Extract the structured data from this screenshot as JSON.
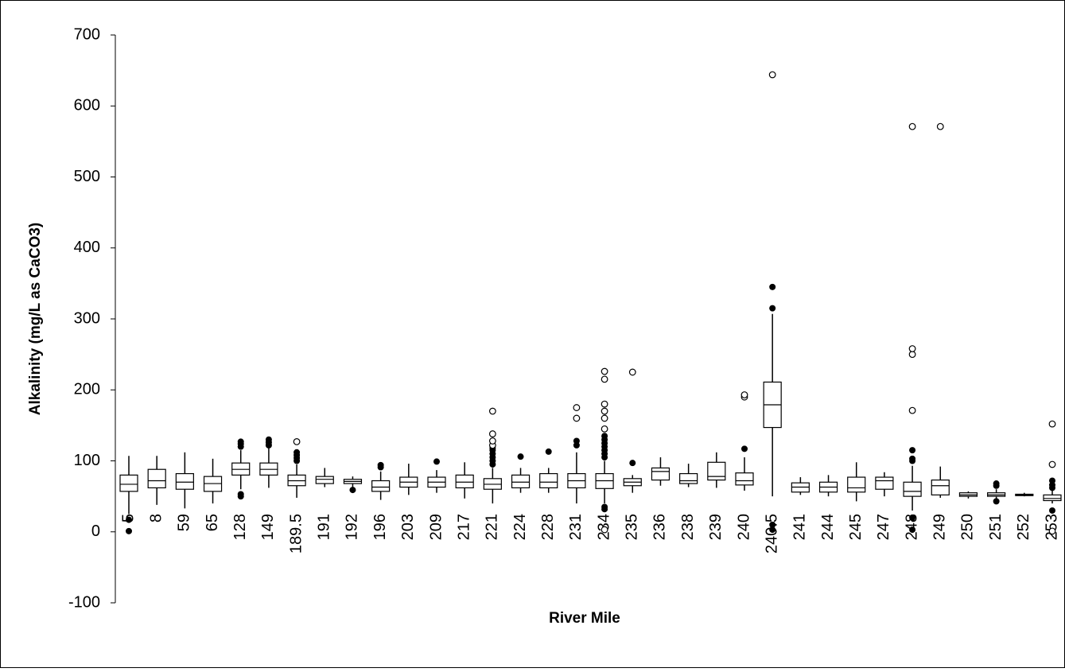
{
  "chart_data": {
    "type": "box",
    "y_label": "Alkalinity (mg/L as CaCO3)",
    "x_label": "River Mile",
    "ylim": [
      -100,
      700
    ],
    "yticks": [
      -100,
      0,
      100,
      200,
      300,
      400,
      500,
      600,
      700
    ],
    "categories": [
      "5",
      "8",
      "59",
      "65",
      "128",
      "149",
      "189.5",
      "191",
      "192",
      "196",
      "203",
      "209",
      "217",
      "221",
      "224",
      "228",
      "231",
      "234",
      "235",
      "236",
      "238",
      "239",
      "240",
      "240.5",
      "241",
      "244",
      "245",
      "247",
      "248",
      "249",
      "250",
      "251",
      "252",
      "253"
    ],
    "boxes": [
      {
        "low": 25,
        "q1": 57,
        "median": 67,
        "q3": 80,
        "high": 107,
        "outliers": [
          17,
          1
        ],
        "extremes": []
      },
      {
        "low": 38,
        "q1": 62,
        "median": 72,
        "q3": 88,
        "high": 107,
        "outliers": [],
        "extremes": []
      },
      {
        "low": 33,
        "q1": 60,
        "median": 70,
        "q3": 82,
        "high": 112,
        "outliers": [],
        "extremes": []
      },
      {
        "low": 40,
        "q1": 57,
        "median": 68,
        "q3": 78,
        "high": 103,
        "outliers": [],
        "extremes": []
      },
      {
        "low": 60,
        "q1": 80,
        "median": 88,
        "q3": 97,
        "high": 115,
        "outliers": [
          120,
          124,
          127,
          50,
          53
        ],
        "extremes": []
      },
      {
        "low": 62,
        "q1": 80,
        "median": 88,
        "q3": 97,
        "high": 118,
        "outliers": [
          122,
          126,
          130
        ],
        "extremes": []
      },
      {
        "low": 48,
        "q1": 65,
        "median": 72,
        "q3": 80,
        "high": 95,
        "outliers": [
          100,
          104,
          108,
          112
        ],
        "extremes": [
          127
        ]
      },
      {
        "low": 63,
        "q1": 68,
        "median": 74,
        "q3": 78,
        "high": 90,
        "outliers": [],
        "extremes": []
      },
      {
        "low": 63,
        "q1": 68,
        "median": 71,
        "q3": 74,
        "high": 78,
        "outliers": [
          59
        ],
        "extremes": []
      },
      {
        "low": 45,
        "q1": 57,
        "median": 63,
        "q3": 72,
        "high": 85,
        "outliers": [
          91,
          94
        ],
        "extremes": []
      },
      {
        "low": 52,
        "q1": 63,
        "median": 70,
        "q3": 77,
        "high": 96,
        "outliers": [],
        "extremes": []
      },
      {
        "low": 55,
        "q1": 63,
        "median": 70,
        "q3": 77,
        "high": 87,
        "outliers": [
          99
        ],
        "extremes": []
      },
      {
        "low": 47,
        "q1": 62,
        "median": 70,
        "q3": 80,
        "high": 98,
        "outliers": [],
        "extremes": []
      },
      {
        "low": 40,
        "q1": 60,
        "median": 67,
        "q3": 75,
        "high": 90,
        "outliers": [
          95,
          100,
          105,
          110,
          115,
          118
        ],
        "extremes": [
          122,
          128,
          138,
          170
        ]
      },
      {
        "low": 55,
        "q1": 62,
        "median": 70,
        "q3": 80,
        "high": 90,
        "outliers": [
          106
        ],
        "extremes": []
      },
      {
        "low": 55,
        "q1": 62,
        "median": 70,
        "q3": 82,
        "high": 90,
        "outliers": [
          113
        ],
        "extremes": []
      },
      {
        "low": 40,
        "q1": 62,
        "median": 72,
        "q3": 82,
        "high": 112,
        "outliers": [
          122,
          128
        ],
        "extremes": [
          160,
          175
        ]
      },
      {
        "low": 40,
        "q1": 61,
        "median": 72,
        "q3": 82,
        "high": 100,
        "outliers": [
          105,
          110,
          115,
          120,
          125,
          130,
          135,
          35,
          32
        ],
        "extremes": [
          145,
          160,
          170,
          180,
          215,
          226,
          3
        ]
      },
      {
        "low": 55,
        "q1": 65,
        "median": 70,
        "q3": 75,
        "high": 80,
        "outliers": [
          97
        ],
        "extremes": [
          225
        ]
      },
      {
        "low": 65,
        "q1": 73,
        "median": 85,
        "q3": 90,
        "high": 105,
        "outliers": [],
        "extremes": []
      },
      {
        "low": 63,
        "q1": 68,
        "median": 72,
        "q3": 82,
        "high": 96,
        "outliers": [],
        "extremes": []
      },
      {
        "low": 62,
        "q1": 73,
        "median": 78,
        "q3": 98,
        "high": 112,
        "outliers": [],
        "extremes": []
      },
      {
        "low": 58,
        "q1": 66,
        "median": 72,
        "q3": 83,
        "high": 105,
        "outliers": [
          117
        ],
        "extremes": [
          190,
          193
        ]
      },
      {
        "low": 50,
        "q1": 147,
        "median": 179,
        "q3": 211,
        "high": 307,
        "outliers": [
          315,
          345,
          10,
          3
        ],
        "extremes": [
          644
        ]
      },
      {
        "low": 52,
        "q1": 56,
        "median": 63,
        "q3": 69,
        "high": 77,
        "outliers": [],
        "extremes": []
      },
      {
        "low": 50,
        "q1": 56,
        "median": 63,
        "q3": 70,
        "high": 80,
        "outliers": [],
        "extremes": []
      },
      {
        "low": 43,
        "q1": 56,
        "median": 62,
        "q3": 77,
        "high": 98,
        "outliers": [],
        "extremes": []
      },
      {
        "low": 50,
        "q1": 60,
        "median": 72,
        "q3": 77,
        "high": 84,
        "outliers": [],
        "extremes": []
      },
      {
        "low": 30,
        "q1": 50,
        "median": 57,
        "q3": 70,
        "high": 93,
        "outliers": [
          100,
          103,
          115,
          20,
          3
        ],
        "extremes": [
          171,
          250,
          258,
          571
        ]
      },
      {
        "low": 48,
        "q1": 52,
        "median": 65,
        "q3": 73,
        "high": 92,
        "outliers": [],
        "extremes": [
          571
        ]
      },
      {
        "low": 47,
        "q1": 50,
        "median": 52,
        "q3": 55,
        "high": 57,
        "outliers": [],
        "extremes": []
      },
      {
        "low": 47,
        "q1": 50,
        "median": 52,
        "q3": 55,
        "high": 60,
        "outliers": [
          65,
          68,
          43
        ],
        "extremes": []
      },
      {
        "low": 50,
        "q1": 51,
        "median": 52,
        "q3": 53,
        "high": 55,
        "outliers": [],
        "extremes": []
      },
      {
        "low": 40,
        "q1": 44,
        "median": 47,
        "q3": 52,
        "high": 58,
        "outliers": [
          62,
          66,
          72,
          30
        ],
        "extremes": [
          95,
          152,
          1
        ]
      }
    ]
  }
}
